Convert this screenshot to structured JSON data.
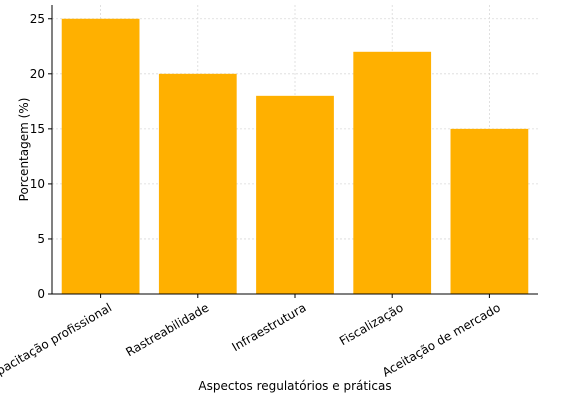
{
  "chart_data": {
    "type": "bar",
    "title": "",
    "xlabel": "Aspectos regulatórios e práticas",
    "ylabel": "Porcentagem (%)",
    "categories": [
      "Capacitação profissional",
      "Rastreabilidade",
      "Infraestrutura",
      "Fiscalização",
      "Aceitação de mercado"
    ],
    "values": [
      25,
      20,
      18,
      22,
      15
    ],
    "ylim": [
      0,
      26.25
    ],
    "yticks": [
      0,
      5,
      10,
      15,
      20,
      25
    ],
    "grid": true,
    "bar_color": "#FFB000",
    "x_tick_rotation_deg": -30
  }
}
